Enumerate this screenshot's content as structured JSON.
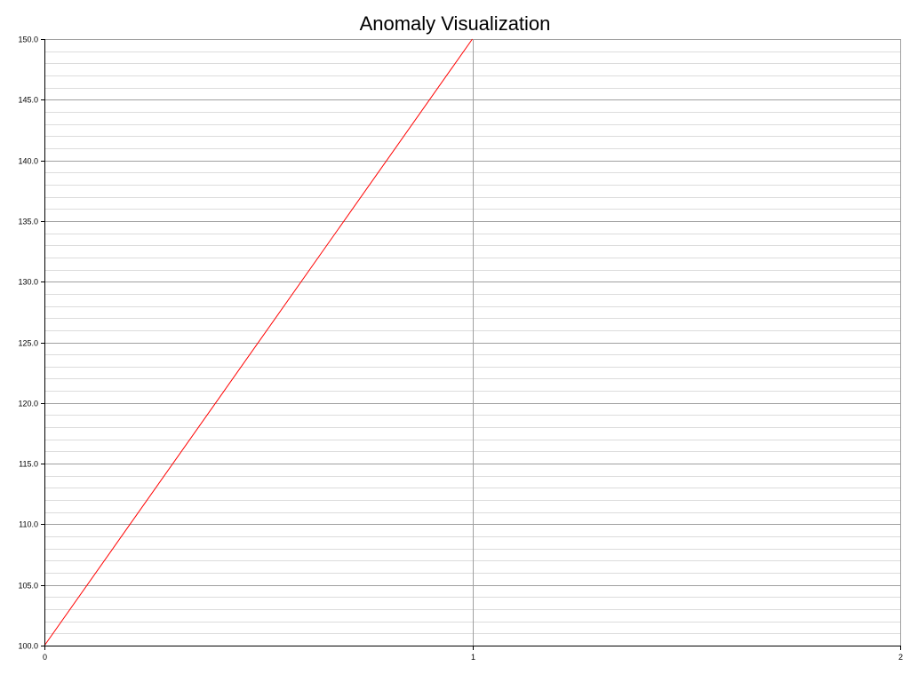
{
  "chart_data": {
    "type": "line",
    "title": "Anomaly Visualization",
    "xlabel": "",
    "ylabel": "",
    "xlim": [
      0,
      2
    ],
    "ylim": [
      100,
      150
    ],
    "x_ticks": [
      0,
      1,
      2
    ],
    "y_ticks": [
      100.0,
      105.0,
      110.0,
      115.0,
      120.0,
      125.0,
      130.0,
      135.0,
      140.0,
      145.0,
      150.0
    ],
    "y_minor_step": 1,
    "grid": true,
    "legend": "none",
    "series": [
      {
        "x": [
          0,
          1
        ],
        "y": [
          100,
          150
        ],
        "color": "#ff0000"
      }
    ]
  },
  "colors": {
    "series_line": "#ff0000",
    "major_grid": "#a0a0a0",
    "minor_grid": "#dcdcdc",
    "axis": "#000000",
    "background": "#ffffff"
  }
}
